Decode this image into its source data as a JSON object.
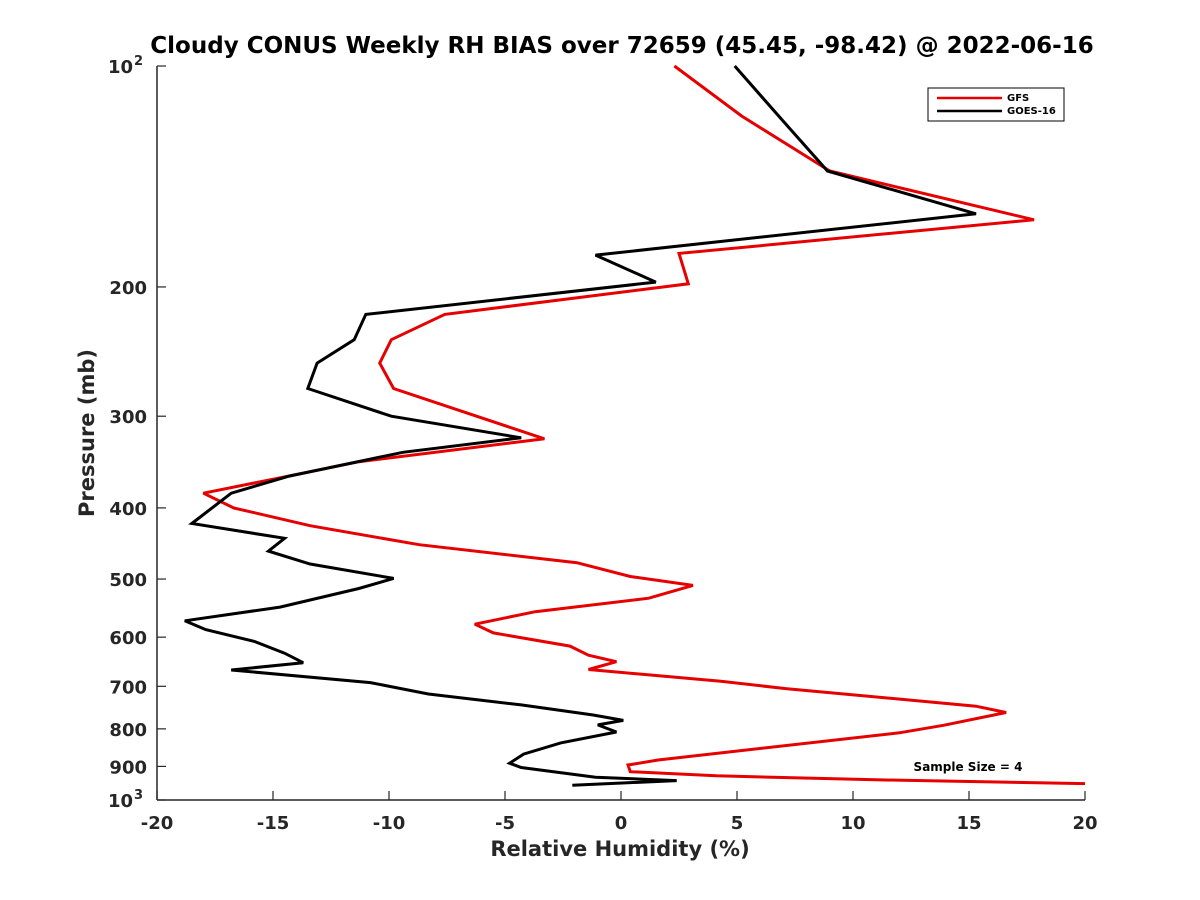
{
  "chart_data": {
    "type": "line",
    "title": "Cloudy CONUS Weekly RH BIAS over 72659 (45.45, -98.42) @ 2022-06-16",
    "xlabel": "Relative Humidity (%)",
    "ylabel": "Pressure (mb)",
    "xlim": [
      -20,
      20
    ],
    "ylim": [
      100,
      1000
    ],
    "y_scale": "log",
    "y_reversed": true,
    "grid": false,
    "legend_position": "top-right",
    "annotation": "Sample Size = 4",
    "x_ticks": [
      "-20",
      "-15",
      "-10",
      "-5",
      "0",
      "5",
      "10",
      "15",
      "20"
    ],
    "y_ticks": [
      {
        "value": 100,
        "label": "10",
        "sup": "2"
      },
      {
        "value": 200,
        "label": "200",
        "sup": ""
      },
      {
        "value": 300,
        "label": "300",
        "sup": ""
      },
      {
        "value": 400,
        "label": "400",
        "sup": ""
      },
      {
        "value": 500,
        "label": "500",
        "sup": ""
      },
      {
        "value": 600,
        "label": "600",
        "sup": ""
      },
      {
        "value": 700,
        "label": "700",
        "sup": ""
      },
      {
        "value": 800,
        "label": "800",
        "sup": ""
      },
      {
        "value": 900,
        "label": "900",
        "sup": ""
      },
      {
        "value": 1000,
        "label": "10",
        "sup": "3"
      }
    ],
    "series": [
      {
        "name": "GFS",
        "color": "#e60000",
        "points": [
          [
            2.3,
            100
          ],
          [
            5.2,
            117
          ],
          [
            9.0,
            139
          ],
          [
            17.8,
            162
          ],
          [
            2.5,
            180
          ],
          [
            2.9,
            198
          ],
          [
            -7.6,
            218
          ],
          [
            -9.9,
            236
          ],
          [
            -10.4,
            254
          ],
          [
            -9.8,
            275
          ],
          [
            -3.3,
            322
          ],
          [
            -11.3,
            346
          ],
          [
            -14.7,
            364
          ],
          [
            -18.0,
            382
          ],
          [
            -16.7,
            400
          ],
          [
            -13.4,
            423
          ],
          [
            -8.7,
            449
          ],
          [
            -1.9,
            475
          ],
          [
            0.4,
            496
          ],
          [
            3.1,
            510
          ],
          [
            1.2,
            531
          ],
          [
            -3.7,
            554
          ],
          [
            -6.3,
            576
          ],
          [
            -5.5,
            592
          ],
          [
            -2.2,
            617
          ],
          [
            -1.4,
            635
          ],
          [
            -0.2,
            648
          ],
          [
            -1.4,
            664
          ],
          [
            4.3,
            689
          ],
          [
            7.1,
            705
          ],
          [
            15.3,
            745
          ],
          [
            16.6,
            760
          ],
          [
            13.9,
            791
          ],
          [
            12.0,
            810
          ],
          [
            1.6,
            882
          ],
          [
            0.3,
            896
          ],
          [
            0.4,
            915
          ],
          [
            4.1,
            927
          ],
          [
            11.2,
            939
          ],
          [
            20.0,
            950
          ]
        ]
      },
      {
        "name": "GOES-16",
        "color": "#000000",
        "points": [
          [
            4.9,
            100
          ],
          [
            6.9,
            118
          ],
          [
            8.9,
            139
          ],
          [
            15.3,
            159
          ],
          [
            -1.1,
            181
          ],
          [
            1.5,
            197
          ],
          [
            -11.0,
            218
          ],
          [
            -11.5,
            236
          ],
          [
            -13.1,
            254
          ],
          [
            -13.5,
            275
          ],
          [
            -9.9,
            300
          ],
          [
            -4.3,
            321
          ],
          [
            -9.4,
            336
          ],
          [
            -14.3,
            362
          ],
          [
            -16.8,
            382
          ],
          [
            -18.5,
            420
          ],
          [
            -14.5,
            440
          ],
          [
            -15.2,
            458
          ],
          [
            -13.4,
            477
          ],
          [
            -9.8,
            499
          ],
          [
            -11.3,
            515
          ],
          [
            -14.7,
            546
          ],
          [
            -18.8,
            570
          ],
          [
            -17.9,
            586
          ],
          [
            -15.8,
            608
          ],
          [
            -14.5,
            631
          ],
          [
            -13.7,
            650
          ],
          [
            -16.8,
            665
          ],
          [
            -10.8,
            692
          ],
          [
            -8.3,
            717
          ],
          [
            -4.3,
            742
          ],
          [
            -1.2,
            766
          ],
          [
            0.1,
            779
          ],
          [
            -1.0,
            790
          ],
          [
            -0.2,
            808
          ],
          [
            -2.6,
            836
          ],
          [
            -4.2,
            866
          ],
          [
            -4.8,
            891
          ],
          [
            -4.3,
            903
          ],
          [
            -1.1,
            931
          ],
          [
            2.4,
            941
          ],
          [
            -2.1,
            955
          ]
        ]
      }
    ]
  }
}
